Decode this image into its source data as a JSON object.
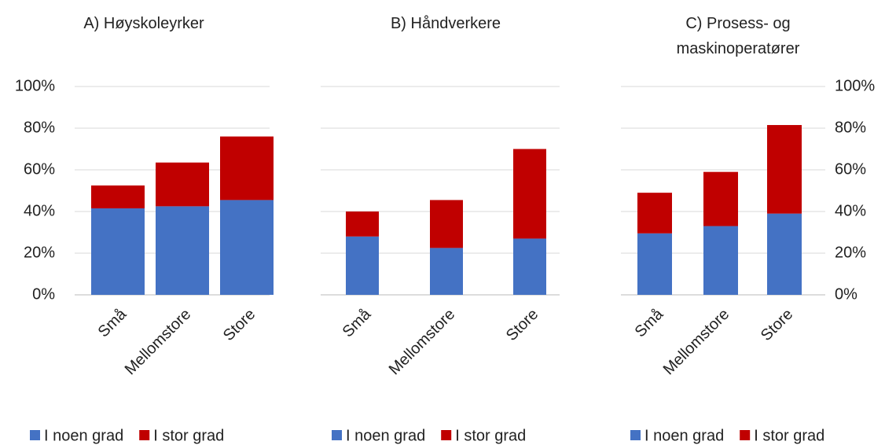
{
  "chart_data": [
    {
      "type": "stacked-bar",
      "title": "A) Høyskoleyrker",
      "categories": [
        "Små",
        "Mellomstore",
        "Store"
      ],
      "series": [
        {
          "name": "I noen grad",
          "color": "#4472c4",
          "values": [
            41.5,
            42.5,
            45.5
          ]
        },
        {
          "name": "I stor grad",
          "color": "#c00000",
          "values": [
            11,
            21,
            30.5
          ]
        }
      ],
      "ylim": [
        0,
        100
      ],
      "yticks": [
        {
          "value": 0,
          "label": "0%"
        },
        {
          "value": 20,
          "label": "20%"
        },
        {
          "value": 40,
          "label": "40%"
        },
        {
          "value": 60,
          "label": "60%"
        },
        {
          "value": 80,
          "label": "80%"
        },
        {
          "value": 100,
          "label": "100%"
        }
      ],
      "y_axis_side": "left",
      "grid": true,
      "legend": "bottom"
    },
    {
      "type": "stacked-bar",
      "title": "B) Håndverkere",
      "categories": [
        "Små",
        "Mellomstore",
        "Store"
      ],
      "series": [
        {
          "name": "I noen grad",
          "color": "#4472c4",
          "values": [
            28,
            22.5,
            27
          ]
        },
        {
          "name": "I stor grad",
          "color": "#c00000",
          "values": [
            12,
            23,
            43
          ]
        }
      ],
      "ylim": [
        0,
        100
      ],
      "yticks": [
        0,
        20,
        40,
        60,
        80,
        100
      ],
      "y_axis_side": "none",
      "grid": true,
      "legend": "bottom"
    },
    {
      "type": "stacked-bar",
      "title": "C) Prosess- og maskinoperatører",
      "categories": [
        "Små",
        "Mellomstore",
        "Store"
      ],
      "series": [
        {
          "name": "I noen grad",
          "color": "#4472c4",
          "values": [
            29.5,
            33,
            39
          ]
        },
        {
          "name": "I stor grad",
          "color": "#c00000",
          "values": [
            19.5,
            26,
            42.5
          ]
        }
      ],
      "ylim": [
        0,
        100
      ],
      "yticks": [
        {
          "value": 0,
          "label": "0%"
        },
        {
          "value": 20,
          "label": "20%"
        },
        {
          "value": 40,
          "label": "40%"
        },
        {
          "value": 60,
          "label": "60%"
        },
        {
          "value": 80,
          "label": "80%"
        },
        {
          "value": 100,
          "label": "100%"
        }
      ],
      "y_axis_side": "right",
      "grid": true,
      "legend": "bottom"
    }
  ]
}
